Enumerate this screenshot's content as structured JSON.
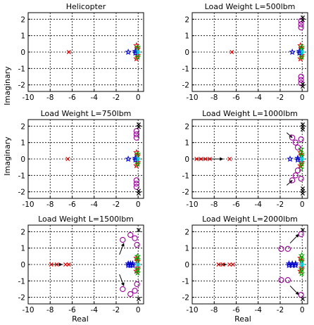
{
  "figure": {
    "ylabel": "Imaginary",
    "xlabel": "Real"
  },
  "chart_data": [
    {
      "type": "scatter",
      "title": "Helicopter",
      "xlim": [
        -10,
        0.5
      ],
      "ylim": [
        -2.4,
        2.4
      ],
      "xticks": [
        -10,
        -8,
        -6,
        -4,
        -2,
        0
      ],
      "yticks": [
        -2,
        -1,
        0,
        1,
        2
      ],
      "grid": true,
      "series": [
        {
          "color": "#e60000",
          "marker": "x",
          "points": [
            [
              -6.3,
              0
            ]
          ]
        },
        {
          "color": "#e60000",
          "marker": "star",
          "points": [
            [
              -0.15,
              0.4
            ],
            [
              -0.15,
              -0.4
            ],
            [
              -0.05,
              0.2
            ],
            [
              -0.05,
              -0.2
            ]
          ]
        },
        {
          "color": "#0000cc",
          "marker": "star",
          "points": [
            [
              -0.9,
              0
            ],
            [
              -0.25,
              0.05
            ],
            [
              -0.25,
              -0.05
            ]
          ]
        },
        {
          "color": "#00aa00",
          "marker": "star",
          "points": [
            [
              -0.05,
              0.3
            ],
            [
              -0.05,
              -0.3
            ]
          ]
        },
        {
          "color": "#00cccc",
          "marker": "plus",
          "points": [
            [
              0.05,
              0
            ],
            [
              -0.05,
              0.08
            ],
            [
              -0.05,
              -0.08
            ]
          ]
        }
      ],
      "arrows": []
    },
    {
      "type": "scatter",
      "title": "Load Weight L=500lbm",
      "xlim": [
        -10,
        0.5
      ],
      "ylim": [
        -2.4,
        2.4
      ],
      "xticks": [
        -10,
        -8,
        -6,
        -4,
        -2,
        0
      ],
      "yticks": [
        -2,
        -1,
        0,
        1,
        2
      ],
      "grid": true,
      "series": [
        {
          "color": "#e60000",
          "marker": "x",
          "points": [
            [
              -6.4,
              0
            ]
          ]
        },
        {
          "color": "#e60000",
          "marker": "star",
          "points": [
            [
              -0.15,
              0.4
            ],
            [
              -0.15,
              -0.4
            ],
            [
              -0.05,
              0.2
            ],
            [
              -0.05,
              -0.2
            ]
          ]
        },
        {
          "color": "#0000cc",
          "marker": "star",
          "points": [
            [
              -0.9,
              0
            ],
            [
              -0.25,
              0.05
            ],
            [
              -0.25,
              -0.05
            ]
          ]
        },
        {
          "color": "#00aa00",
          "marker": "star",
          "points": [
            [
              -0.05,
              0.3
            ],
            [
              -0.05,
              -0.3
            ]
          ]
        },
        {
          "color": "#00cccc",
          "marker": "plus",
          "points": [
            [
              0.05,
              0
            ],
            [
              -0.05,
              0.08
            ],
            [
              -0.05,
              -0.08
            ]
          ]
        },
        {
          "color": "#990099",
          "marker": "circle",
          "points": [
            [
              -0.1,
              1.5
            ],
            [
              -0.1,
              1.7
            ],
            [
              -0.1,
              1.9
            ],
            [
              -0.1,
              -1.5
            ],
            [
              -0.1,
              -1.7
            ],
            [
              -0.1,
              -1.9
            ]
          ]
        },
        {
          "color": "#000000",
          "marker": "x",
          "points": [
            [
              0.05,
              2.1
            ],
            [
              0.05,
              1.95
            ],
            [
              0.05,
              -1.95
            ],
            [
              0.05,
              -2.1
            ]
          ]
        }
      ],
      "arrows": []
    },
    {
      "type": "scatter",
      "title": "Load Weight L=750lbm",
      "xlim": [
        -10,
        0.5
      ],
      "ylim": [
        -2.4,
        2.4
      ],
      "xticks": [
        -10,
        -8,
        -6,
        -4,
        -2,
        0
      ],
      "yticks": [
        -2,
        -1,
        0,
        1,
        2
      ],
      "grid": true,
      "series": [
        {
          "color": "#e60000",
          "marker": "x",
          "points": [
            [
              -6.4,
              0
            ]
          ]
        },
        {
          "color": "#e60000",
          "marker": "star",
          "points": [
            [
              -0.15,
              0.4
            ],
            [
              -0.15,
              -0.4
            ],
            [
              -0.05,
              0.2
            ],
            [
              -0.05,
              -0.2
            ]
          ]
        },
        {
          "color": "#0000cc",
          "marker": "star",
          "points": [
            [
              -0.9,
              0
            ],
            [
              -0.25,
              0.05
            ],
            [
              -0.25,
              -0.05
            ]
          ]
        },
        {
          "color": "#00aa00",
          "marker": "star",
          "points": [
            [
              -0.05,
              0.3
            ],
            [
              -0.05,
              -0.3
            ]
          ]
        },
        {
          "color": "#00cccc",
          "marker": "plus",
          "points": [
            [
              0.05,
              0
            ],
            [
              -0.05,
              0.08
            ],
            [
              -0.05,
              -0.08
            ]
          ]
        },
        {
          "color": "#990099",
          "marker": "circle",
          "points": [
            [
              -0.15,
              1.3
            ],
            [
              -0.15,
              1.5
            ],
            [
              -0.15,
              1.7
            ],
            [
              -0.15,
              -1.3
            ],
            [
              -0.15,
              -1.5
            ],
            [
              -0.15,
              -1.7
            ]
          ]
        },
        {
          "color": "#000000",
          "marker": "x",
          "points": [
            [
              0.05,
              2.1
            ],
            [
              0.05,
              1.95
            ],
            [
              0.05,
              -1.95
            ],
            [
              0.05,
              -2.1
            ]
          ]
        }
      ],
      "arrows": []
    },
    {
      "type": "scatter",
      "title": "Load Weight L=1000lbm",
      "xlim": [
        -10,
        0.5
      ],
      "ylim": [
        -2.4,
        2.4
      ],
      "xticks": [
        -10,
        -8,
        -6,
        -4,
        -2,
        0
      ],
      "yticks": [
        -2,
        -1,
        0,
        1,
        2
      ],
      "grid": true,
      "series": [
        {
          "color": "#e60000",
          "marker": "x",
          "points": [
            [
              -9.6,
              0
            ],
            [
              -9.2,
              0
            ],
            [
              -8.8,
              0
            ],
            [
              -8.4,
              0
            ],
            [
              -6.6,
              0
            ]
          ]
        },
        {
          "color": "#e60000",
          "marker": "star",
          "points": [
            [
              -0.15,
              0.4
            ],
            [
              -0.15,
              -0.4
            ],
            [
              -0.05,
              0.2
            ],
            [
              -0.05,
              -0.2
            ]
          ]
        },
        {
          "color": "#0000cc",
          "marker": "star",
          "points": [
            [
              -1.1,
              0
            ],
            [
              -0.4,
              0.05
            ],
            [
              -0.4,
              -0.05
            ]
          ]
        },
        {
          "color": "#00aa00",
          "marker": "star",
          "points": [
            [
              -0.05,
              0.3
            ],
            [
              -0.05,
              -0.3
            ],
            [
              -0.1,
              0.6
            ],
            [
              -0.1,
              -0.6
            ]
          ]
        },
        {
          "color": "#00cccc",
          "marker": "plus",
          "points": [
            [
              0.05,
              0
            ],
            [
              -0.05,
              0.08
            ],
            [
              -0.05,
              -0.08
            ]
          ]
        },
        {
          "color": "#990099",
          "marker": "circle",
          "points": [
            [
              -0.9,
              1.3
            ],
            [
              -0.6,
              1.0
            ],
            [
              -0.4,
              0.7
            ],
            [
              -0.9,
              -1.3
            ],
            [
              -0.6,
              -1.0
            ],
            [
              -0.4,
              -0.7
            ],
            [
              -0.1,
              1.2
            ],
            [
              -0.1,
              -1.2
            ]
          ]
        },
        {
          "color": "#000000",
          "marker": "x",
          "points": [
            [
              0.05,
              2.1
            ],
            [
              0.05,
              1.95
            ],
            [
              0.05,
              1.8
            ],
            [
              0.05,
              -1.8
            ],
            [
              0.05,
              -1.95
            ],
            [
              0.05,
              -2.1
            ]
          ]
        }
      ],
      "arrows": [
        {
          "from": [
            -9.6,
            0
          ],
          "to": [
            -7.2,
            0
          ]
        },
        {
          "from": [
            -1.4,
            1.6
          ],
          "to": [
            -0.9,
            1.3
          ]
        },
        {
          "from": [
            -1.4,
            -1.6
          ],
          "to": [
            -0.9,
            -1.3
          ]
        }
      ]
    },
    {
      "type": "scatter",
      "title": "Load Weight L=1500lbm",
      "xlim": [
        -10,
        0.5
      ],
      "ylim": [
        -2.4,
        2.4
      ],
      "xticks": [
        -10,
        -8,
        -6,
        -4,
        -2,
        0
      ],
      "yticks": [
        -2,
        -1,
        0,
        1,
        2
      ],
      "grid": true,
      "series": [
        {
          "color": "#e60000",
          "marker": "x",
          "points": [
            [
              -7.9,
              0
            ],
            [
              -7.4,
              0
            ],
            [
              -6.6,
              0
            ],
            [
              -6.3,
              0
            ]
          ]
        },
        {
          "color": "#e60000",
          "marker": "star",
          "points": [
            [
              -0.15,
              0.4
            ],
            [
              -0.15,
              -0.4
            ],
            [
              -0.05,
              0.2
            ],
            [
              -0.05,
              -0.2
            ]
          ]
        },
        {
          "color": "#0000cc",
          "marker": "star",
          "points": [
            [
              -0.9,
              0.05
            ],
            [
              -0.7,
              0.05
            ],
            [
              -0.5,
              0.05
            ],
            [
              -0.9,
              -0.05
            ],
            [
              -0.7,
              -0.05
            ],
            [
              -0.5,
              -0.05
            ]
          ]
        },
        {
          "color": "#00aa00",
          "marker": "star",
          "points": [
            [
              -0.05,
              0.3
            ],
            [
              -0.05,
              -0.3
            ],
            [
              -0.05,
              0.5
            ],
            [
              -0.05,
              -0.5
            ]
          ]
        },
        {
          "color": "#00cccc",
          "marker": "plus",
          "points": [
            [
              0.05,
              0
            ],
            [
              -0.05,
              0.08
            ],
            [
              -0.05,
              -0.08
            ]
          ]
        },
        {
          "color": "#990099",
          "marker": "circle",
          "points": [
            [
              -1.4,
              1.5
            ],
            [
              -0.7,
              1.8
            ],
            [
              -0.3,
              1.6
            ],
            [
              -1.4,
              -1.5
            ],
            [
              -0.7,
              -1.8
            ],
            [
              -0.3,
              -1.6
            ],
            [
              -0.1,
              1.2
            ],
            [
              -0.1,
              -1.2
            ]
          ]
        },
        {
          "color": "#000000",
          "marker": "x",
          "points": [
            [
              0.05,
              2.1
            ],
            [
              0.05,
              -2.1
            ]
          ]
        }
      ],
      "arrows": [
        {
          "from": [
            -7.9,
            0
          ],
          "to": [
            -6.9,
            0
          ]
        },
        {
          "from": [
            -1.7,
            0.6
          ],
          "to": [
            -1.3,
            1.3
          ]
        },
        {
          "from": [
            -1.7,
            -0.6
          ],
          "to": [
            -1.3,
            -1.3
          ]
        }
      ]
    },
    {
      "type": "scatter",
      "title": "Load Weight L=2000lbm",
      "xlim": [
        -10,
        0.5
      ],
      "ylim": [
        -2.4,
        2.4
      ],
      "xticks": [
        -10,
        -8,
        -6,
        -4,
        -2,
        0
      ],
      "yticks": [
        -2,
        -1,
        0,
        1,
        2
      ],
      "grid": true,
      "series": [
        {
          "color": "#e60000",
          "marker": "x",
          "points": [
            [
              -7.6,
              0
            ],
            [
              -7.2,
              0
            ],
            [
              -6.6,
              0
            ],
            [
              -6.3,
              0
            ]
          ]
        },
        {
          "color": "#e60000",
          "marker": "star",
          "points": [
            [
              -0.15,
              0.4
            ],
            [
              -0.15,
              -0.4
            ],
            [
              -0.05,
              0.2
            ],
            [
              -0.05,
              -0.2
            ]
          ]
        },
        {
          "color": "#0000cc",
          "marker": "star",
          "points": [
            [
              -1.2,
              0.05
            ],
            [
              -0.9,
              0.05
            ],
            [
              -0.6,
              0.05
            ],
            [
              -1.2,
              -0.05
            ],
            [
              -0.9,
              -0.05
            ],
            [
              -0.6,
              -0.05
            ]
          ]
        },
        {
          "color": "#00aa00",
          "marker": "star",
          "points": [
            [
              -0.05,
              0.3
            ],
            [
              -0.05,
              -0.3
            ],
            [
              -0.05,
              0.55
            ],
            [
              -0.05,
              -0.55
            ]
          ]
        },
        {
          "color": "#00cccc",
          "marker": "plus",
          "points": [
            [
              0.05,
              0
            ],
            [
              -0.05,
              0.08
            ],
            [
              -0.05,
              -0.08
            ]
          ]
        },
        {
          "color": "#990099",
          "marker": "circle",
          "points": [
            [
              -1.9,
              0.95
            ],
            [
              -1.3,
              0.95
            ],
            [
              -1.9,
              -0.95
            ],
            [
              -1.3,
              -0.95
            ],
            [
              -0.1,
              1.85
            ],
            [
              -0.1,
              -1.85
            ]
          ]
        },
        {
          "color": "#000000",
          "marker": "x",
          "points": [
            [
              0.05,
              2.1
            ],
            [
              0.05,
              -2.1
            ]
          ]
        }
      ],
      "arrows": [
        {
          "from": [
            -7.6,
            0
          ],
          "to": [
            -6.9,
            0
          ]
        },
        {
          "from": [
            -1.1,
            1.3
          ],
          "to": [
            -0.3,
            1.85
          ]
        },
        {
          "from": [
            -1.1,
            -1.3
          ],
          "to": [
            -0.3,
            -1.85
          ]
        }
      ]
    }
  ]
}
